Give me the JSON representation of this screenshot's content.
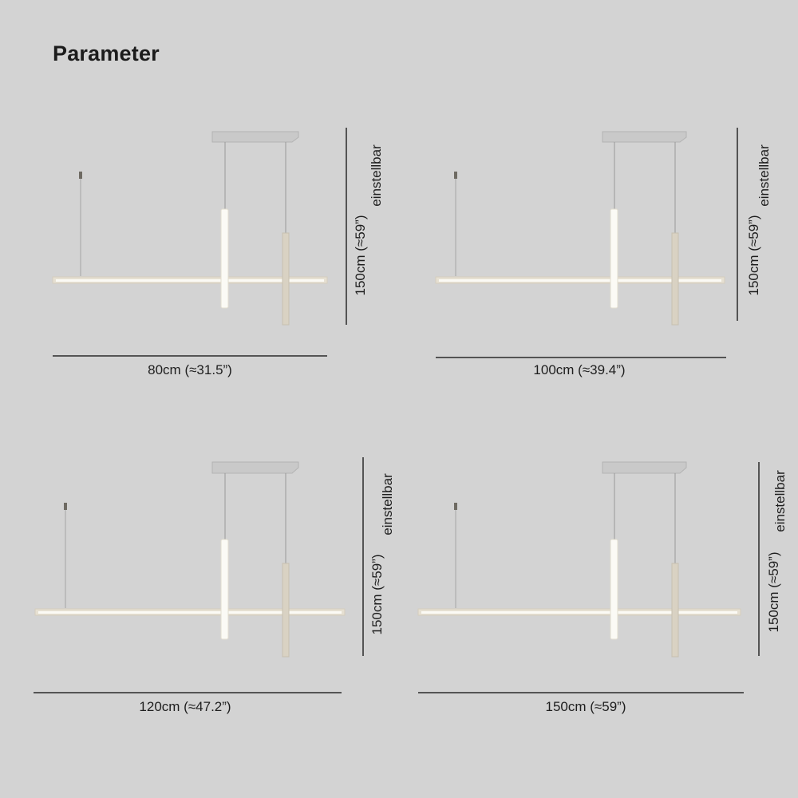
{
  "title": "Parameter",
  "colors": {
    "background": "#d3d3d3",
    "canopy": "#c9c9c9",
    "bar": "#e6e0d2",
    "glow": "#fbfaf5",
    "dimension_line": "#2a2a2a"
  },
  "variants": [
    {
      "width_label": "80cm (≈31.5”)",
      "height_label": "150cm (≈59”)",
      "adjust_label": "einstellbar"
    },
    {
      "width_label": "100cm (≈39.4”)",
      "height_label": "150cm (≈59”)",
      "adjust_label": "einstellbar"
    },
    {
      "width_label": "120cm (≈47.2”)",
      "height_label": "150cm (≈59”)",
      "adjust_label": "einstellbar"
    },
    {
      "width_label": "150cm (≈59”)",
      "height_label": "150cm (≈59”)",
      "adjust_label": "einstellbar"
    }
  ]
}
